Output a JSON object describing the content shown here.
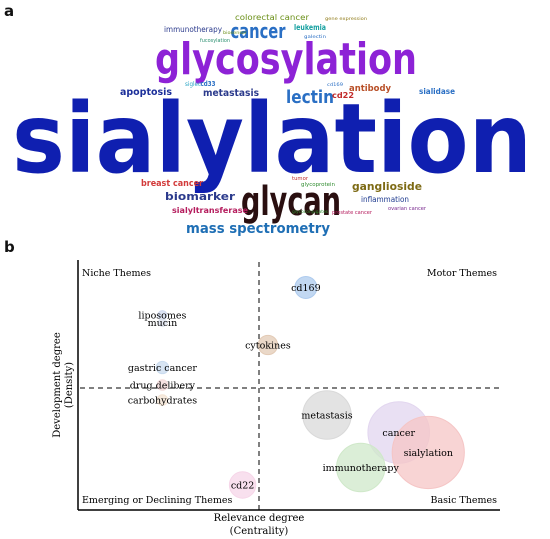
{
  "panel_a_label": "a",
  "panel_b_label": "b",
  "wordcloud": {
    "words": [
      {
        "text": "sialylation",
        "color": "#0f1fb0"
      },
      {
        "text": "glycosylation",
        "color": "#8d22d6"
      },
      {
        "text": "glycan",
        "color": "#2a0f10"
      },
      {
        "text": "cancer",
        "color": "#2a6fc4"
      },
      {
        "text": "lectin",
        "color": "#2a6fc4"
      },
      {
        "text": "mass spectrometry",
        "color": "#1f6fb5"
      },
      {
        "text": "biomarker",
        "color": "#2b3a8c"
      },
      {
        "text": "ganglioside",
        "color": "#7d6a14"
      },
      {
        "text": "apoptosis",
        "color": "#1c2f9a"
      },
      {
        "text": "metastasis",
        "color": "#2b3a8c"
      },
      {
        "text": "antibody",
        "color": "#b84f27"
      },
      {
        "text": "immunotherapy",
        "color": "#2b3a8c"
      },
      {
        "text": "colorectal cancer",
        "color": "#6a8f17"
      },
      {
        "text": "breast cancer",
        "color": "#d23a3a"
      },
      {
        "text": "sialyltransferase",
        "color": "#b51c5d"
      },
      {
        "text": "leukemia",
        "color": "#16a0a0"
      },
      {
        "text": "inflammation",
        "color": "#1f3b8f"
      },
      {
        "text": "cd22",
        "color": "#c12a2a"
      },
      {
        "text": "sialidase",
        "color": "#2a6fc4"
      },
      {
        "text": "cd33",
        "color": "#2a6fc4"
      },
      {
        "text": "siglec",
        "color": "#2aa5c4"
      },
      {
        "text": "fucosylation",
        "color": "#2a8f6f"
      },
      {
        "text": "prostate cancer",
        "color": "#b51c5d"
      },
      {
        "text": "ovarian cancer",
        "color": "#7a2a8f"
      },
      {
        "text": "glycoprotein",
        "color": "#2f8c2f"
      },
      {
        "text": "tumor",
        "color": "#c12a2a"
      },
      {
        "text": "gene expression",
        "color": "#8f7a17"
      },
      {
        "text": "glycoconjugates",
        "color": "#2f8c2f"
      },
      {
        "text": "galectin",
        "color": "#2a6fc4"
      },
      {
        "text": "biosensor",
        "color": "#6a8f17"
      },
      {
        "text": "cd169",
        "color": "#2a6fc4"
      }
    ]
  },
  "thematic_map": {
    "quadrants": {
      "top_left": "Niche Themes",
      "top_right": "Motor Themes",
      "bottom_left": "Emerging or Declining Themes",
      "bottom_right": "Basic Themes"
    },
    "x_axis_label_line1": "Relevance degree",
    "x_axis_label_line2": "(Centrality)",
    "y_axis_label_line1": "Development degree",
    "y_axis_label_line2": "(Density)",
    "clusters": [
      {
        "label": "cd169",
        "color": "#aecbee",
        "centrality": 0.54,
        "density": 0.89,
        "size": 0.25
      },
      {
        "label": "liposomes",
        "color": "#cfd9ef",
        "centrality": 0.2,
        "density": 0.78,
        "size": 0.1
      },
      {
        "label": "mucin",
        "color": "#dde3ef",
        "centrality": 0.2,
        "density": 0.75,
        "size": 0.08
      },
      {
        "label": "cytokines",
        "color": "#e3cbb6",
        "centrality": 0.45,
        "density": 0.66,
        "size": 0.22
      },
      {
        "label": "gastric cancer",
        "color": "#c9dbef",
        "centrality": 0.2,
        "density": 0.57,
        "size": 0.14
      },
      {
        "label": "drug delibery",
        "color": "#f3dada",
        "centrality": 0.2,
        "density": 0.5,
        "size": 0.12
      },
      {
        "label": "carbohydrates",
        "color": "#f3e3d3",
        "centrality": 0.2,
        "density": 0.44,
        "size": 0.12
      },
      {
        "label": "metastasis",
        "color": "#d9d9d9",
        "centrality": 0.59,
        "density": 0.38,
        "size": 0.55
      },
      {
        "label": "cancer",
        "color": "#e2d6ef",
        "centrality": 0.76,
        "density": 0.31,
        "size": 0.7
      },
      {
        "label": "sialylation",
        "color": "#f5c5c5",
        "centrality": 0.83,
        "density": 0.23,
        "size": 0.82
      },
      {
        "label": "immunotherapy",
        "color": "#cfe8c9",
        "centrality": 0.67,
        "density": 0.17,
        "size": 0.55
      },
      {
        "label": "cd22",
        "color": "#f6d5e8",
        "centrality": 0.39,
        "density": 0.1,
        "size": 0.3
      }
    ]
  }
}
